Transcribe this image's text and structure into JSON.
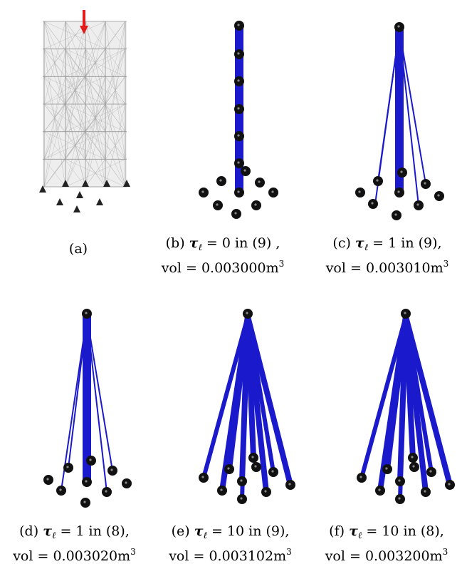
{
  "colors": {
    "bar": "#1a1acc",
    "node": "#111111",
    "grid": "#aaaaaa",
    "arrow": "#e21b1b"
  },
  "panels": [
    {
      "id": "a",
      "label": "(a)",
      "expr": "",
      "rest": "",
      "vol_label": "",
      "vol_value": "",
      "unit": "",
      "exp": ""
    },
    {
      "id": "b",
      "label": "(b)",
      "expr": "τ",
      "sub": "ℓ",
      "rest": " = 0 in (9) ,",
      "vol_label": "vol = ",
      "vol_value": "0.003000",
      "unit": "m",
      "exp": "3"
    },
    {
      "id": "c",
      "label": "(c)",
      "expr": "τ",
      "sub": "ℓ",
      "rest": " = 1 in (9),",
      "vol_label": "vol = ",
      "vol_value": "0.003010",
      "unit": "m",
      "exp": "3"
    },
    {
      "id": "d",
      "label": "(d)",
      "expr": "τ",
      "sub": "ℓ",
      "rest": " = 1 in (8),",
      "vol_label": "vol = ",
      "vol_value": "0.003020",
      "unit": "m",
      "exp": "3"
    },
    {
      "id": "e",
      "label": "(e)",
      "expr": "τ",
      "sub": "ℓ",
      "rest": " = 10 in (9),",
      "vol_label": "vol = ",
      "vol_value": "0.003102",
      "unit": "m",
      "exp": "3"
    },
    {
      "id": "f",
      "label": "(f)",
      "expr": "τ",
      "sub": "ℓ",
      "rest": " = 10 in (8),",
      "vol_label": "vol = ",
      "vol_value": "0.003200",
      "unit": "m",
      "exp": "3"
    }
  ]
}
